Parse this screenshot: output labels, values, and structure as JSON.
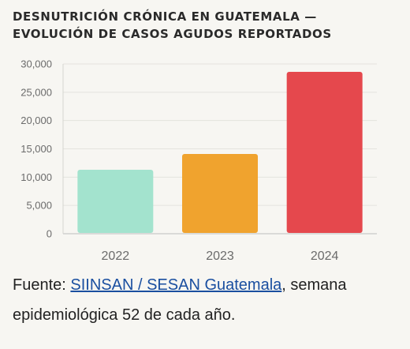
{
  "header": {
    "title_line1": "DESNUTRICIÓN CRÓNICA EN GUATEMALA —",
    "title_line2": "EVOLUCIÓN DE CASOS AGUDOS REPORTADOS"
  },
  "source": {
    "prefix": "Fuente: ",
    "link_text": "SIINSAN / SESAN Guatemala",
    "suffix": ", semana epidemiológica 52 de cada año."
  },
  "chart_data": {
    "type": "bar",
    "categories": [
      "2022",
      "2023",
      "2024"
    ],
    "values": [
      11300,
      14100,
      28600
    ],
    "colors": [
      "#a3e3ce",
      "#f0a32e",
      "#e5484d"
    ],
    "title": "DESNUTRICIÓN CRÓNICA EN GUATEMALA — EVOLUCIÓN DE CASOS AGUDOS REPORTADOS",
    "xlabel": "",
    "ylabel": "",
    "ylim": [
      0,
      30000
    ],
    "yticks": [
      0,
      5000,
      10000,
      15000,
      20000,
      25000,
      30000
    ],
    "ytick_labels": [
      "0",
      "5,000",
      "10,000",
      "15,000",
      "20,000",
      "25,000",
      "30,000"
    ],
    "grid": true,
    "legend": "none"
  }
}
